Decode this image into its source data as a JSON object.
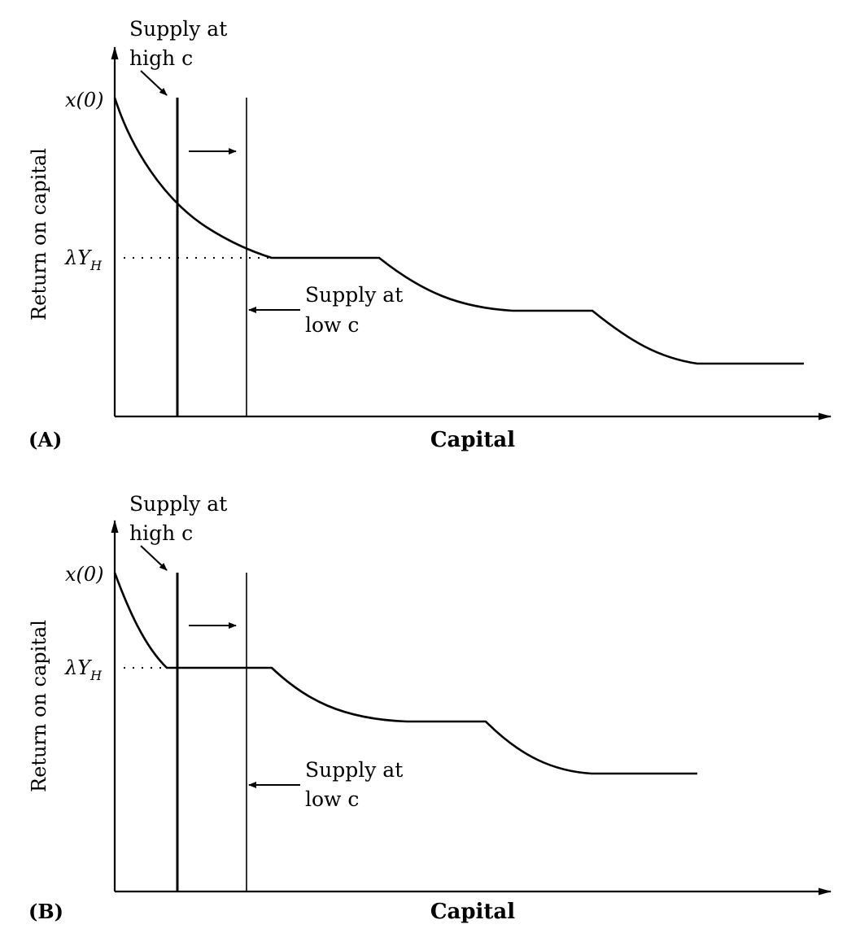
{
  "panels": [
    {
      "panel_label": "(A)",
      "ylabel": "Return on capital",
      "xlabel": "Capital",
      "tick_x0": "x(0)",
      "tick_lambda_main": "λY",
      "tick_lambda_sub": "H",
      "supply_high": {
        "line1": "Supply at",
        "line2": "high c"
      },
      "supply_low": {
        "line1": "Supply at",
        "line2": "low c"
      }
    },
    {
      "panel_label": "(B)",
      "ylabel": "Return on capital",
      "xlabel": "Capital",
      "tick_x0": "x(0)",
      "tick_lambda_main": "λY",
      "tick_lambda_sub": "H",
      "supply_high": {
        "line1": "Supply at",
        "line2": "high c"
      },
      "supply_low": {
        "line1": "Supply at",
        "line2": "low c"
      }
    }
  ],
  "colors": {
    "ink": "#000000",
    "background": "#ffffff"
  }
}
